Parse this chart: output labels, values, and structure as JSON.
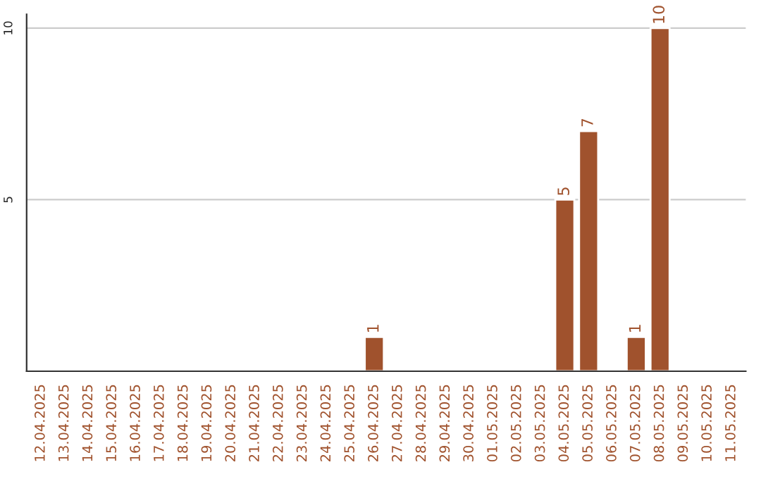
{
  "chart_data": {
    "type": "bar",
    "categories": [
      "12.04.2025",
      "13.04.2025",
      "14.04.2025",
      "15.04.2025",
      "16.04.2025",
      "17.04.2025",
      "18.04.2025",
      "19.04.2025",
      "20.04.2025",
      "21.04.2025",
      "22.04.2025",
      "23.04.2025",
      "24.04.2025",
      "25.04.2025",
      "26.04.2025",
      "27.04.2025",
      "28.04.2025",
      "29.04.2025",
      "30.04.2025",
      "01.05.2025",
      "02.05.2025",
      "03.05.2025",
      "04.05.2025",
      "05.05.2025",
      "06.05.2025",
      "07.05.2025",
      "08.05.2025",
      "09.05.2025",
      "10.05.2025",
      "11.05.2025"
    ],
    "values": [
      null,
      null,
      null,
      null,
      null,
      null,
      null,
      null,
      null,
      null,
      null,
      null,
      null,
      null,
      1,
      null,
      null,
      null,
      null,
      null,
      null,
      null,
      5,
      7,
      null,
      1,
      10,
      null,
      null,
      null
    ],
    "value_labels": [
      null,
      null,
      null,
      null,
      null,
      null,
      null,
      null,
      null,
      null,
      null,
      null,
      null,
      null,
      "1",
      null,
      null,
      null,
      null,
      null,
      null,
      null,
      "5",
      "7",
      null,
      "1",
      "10",
      null,
      null,
      null
    ],
    "color": "#a0522d",
    "ylim": [
      0,
      10.4
    ],
    "yticks": [
      5,
      10
    ],
    "grid": "y"
  }
}
